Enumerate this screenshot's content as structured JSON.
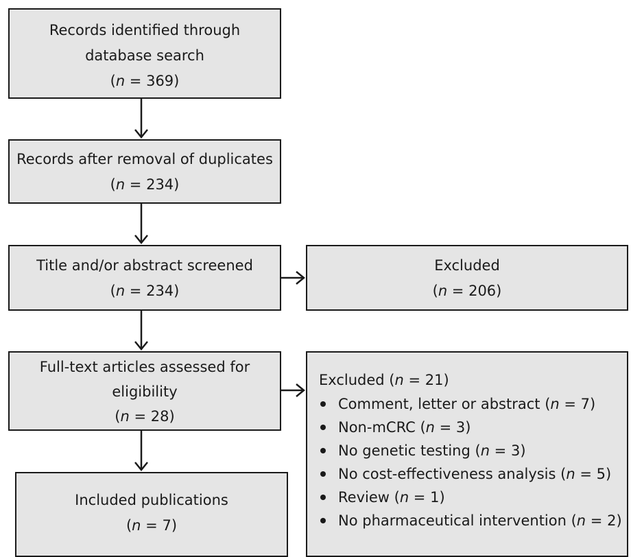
{
  "boxes": {
    "identified": {
      "lines": [
        "Records identified through",
        "database search"
      ],
      "n": "369"
    },
    "dedup": {
      "lines": [
        "Records after removal of duplicates"
      ],
      "n": "234"
    },
    "screened": {
      "lines": [
        "Title and/or abstract screened"
      ],
      "n": "234"
    },
    "excluded_screen": {
      "lines": [
        "Excluded"
      ],
      "n": "206"
    },
    "fulltext": {
      "lines": [
        "Full-text articles assessed for",
        "eligibility"
      ],
      "n": "28"
    },
    "excluded_fulltext": {
      "heading": "Excluded",
      "n": "21",
      "reasons": [
        {
          "label": "Comment, letter or abstract",
          "n": "7"
        },
        {
          "label": "Non-mCRC",
          "n": "3"
        },
        {
          "label": "No genetic testing",
          "n": "3"
        },
        {
          "label": "No cost-effectiveness analysis",
          "n": "5"
        },
        {
          "label": "Review",
          "n": "1"
        },
        {
          "label": "No pharmaceutical intervention",
          "n": "2"
        }
      ]
    },
    "included": {
      "lines": [
        "Included publications"
      ],
      "n": "7"
    }
  },
  "n_symbol": "n",
  "colors": {
    "box_fill": "#e5e5e5",
    "stroke": "#1a1a1a"
  }
}
